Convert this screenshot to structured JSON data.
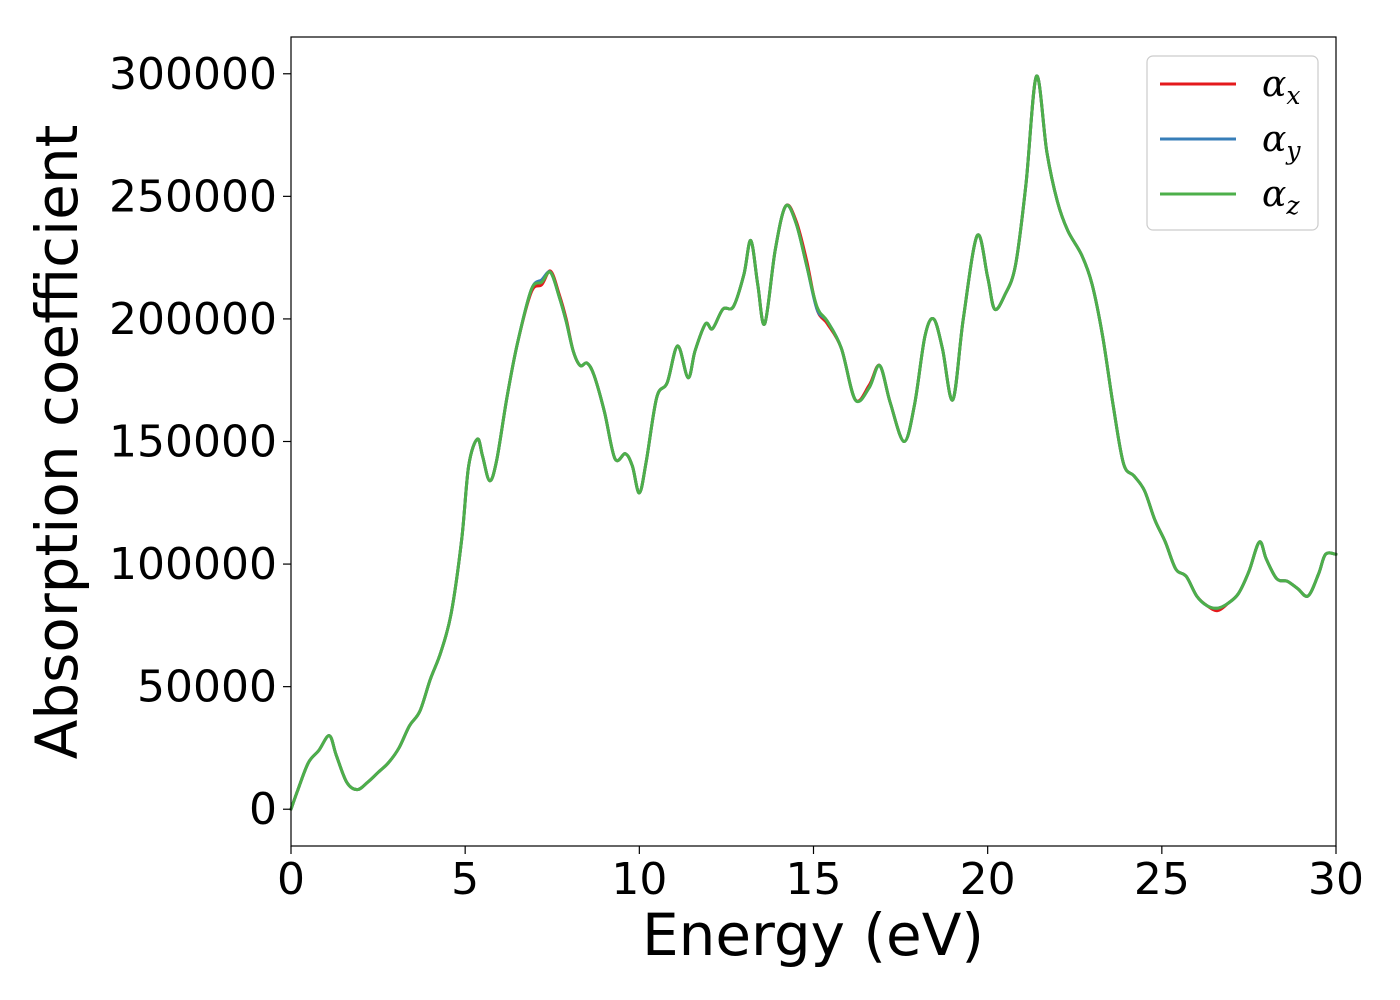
{
  "chart_data": {
    "type": "line",
    "title": "",
    "xlabel": "Energy (eV)",
    "ylabel": "Absorption coefficient",
    "xlim": [
      0,
      30
    ],
    "ylim": [
      -15000,
      315000
    ],
    "x_ticks": [
      "0",
      "5",
      "10",
      "15",
      "20",
      "25",
      "30"
    ],
    "y_ticks": [
      "0",
      "50000",
      "100000",
      "150000",
      "200000",
      "250000",
      "300000"
    ],
    "grid": false,
    "legend_position": "top-right",
    "series": [
      {
        "name": "α_x",
        "symbol": "α",
        "subscript": "x",
        "color": "#e41a1c",
        "x": [
          0,
          0.2,
          0.5,
          0.8,
          1.1,
          1.3,
          1.6,
          1.9,
          2.2,
          2.5,
          2.8,
          3.1,
          3.4,
          3.7,
          4.0,
          4.3,
          4.6,
          4.9,
          5.1,
          5.35,
          5.5,
          5.7,
          5.9,
          6.2,
          6.5,
          6.9,
          7.2,
          7.45,
          7.7,
          7.9,
          8.1,
          8.3,
          8.5,
          8.7,
          9.0,
          9.3,
          9.6,
          9.8,
          10.0,
          10.2,
          10.5,
          10.8,
          11.1,
          11.4,
          11.6,
          11.9,
          12.1,
          12.4,
          12.7,
          13.0,
          13.2,
          13.4,
          13.6,
          13.9,
          14.2,
          14.5,
          14.8,
          15.1,
          15.4,
          15.8,
          16.2,
          16.6,
          16.9,
          17.2,
          17.6,
          17.9,
          18.2,
          18.45,
          18.7,
          19.0,
          19.3,
          19.7,
          20.0,
          20.2,
          20.5,
          20.8,
          21.1,
          21.4,
          21.7,
          22.0,
          22.3,
          22.7,
          23.0,
          23.3,
          23.6,
          23.9,
          24.2,
          24.5,
          24.8,
          25.1,
          25.4,
          25.7,
          26.0,
          26.3,
          26.6,
          26.9,
          27.2,
          27.5,
          27.8,
          28.0,
          28.3,
          28.6,
          28.9,
          29.2,
          29.5,
          29.7,
          30.0
        ],
        "values": [
          0,
          8000,
          19000,
          24000,
          30000,
          22000,
          11000,
          8000,
          11000,
          15000,
          19000,
          25000,
          34000,
          40000,
          53000,
          64000,
          80000,
          110000,
          140000,
          151000,
          144000,
          134000,
          142000,
          168000,
          190000,
          211000,
          214000,
          219500,
          210000,
          200000,
          187000,
          181000,
          182000,
          177000,
          162000,
          143000,
          145000,
          140000,
          129000,
          142000,
          168000,
          174000,
          189000,
          176000,
          187000,
          198000,
          196000,
          204000,
          205000,
          218000,
          232000,
          214000,
          198000,
          228000,
          246000,
          240000,
          224000,
          204000,
          198000,
          188000,
          167000,
          173000,
          181000,
          166000,
          150000,
          165000,
          193000,
          200000,
          188000,
          167000,
          200000,
          234000,
          217000,
          204000,
          210000,
          222000,
          255000,
          299000,
          268000,
          248000,
          236000,
          226000,
          214000,
          193000,
          165000,
          141000,
          136000,
          130000,
          118000,
          109000,
          98000,
          95000,
          87000,
          83000,
          81000,
          84000,
          88000,
          97000,
          109000,
          102000,
          94000,
          93000,
          90000,
          87000,
          96000,
          104000,
          104000
        ]
      },
      {
        "name": "α_y",
        "symbol": "α",
        "subscript": "y",
        "color": "#377eb8",
        "x": [
          0,
          0.2,
          0.5,
          0.8,
          1.1,
          1.3,
          1.6,
          1.9,
          2.2,
          2.5,
          2.8,
          3.1,
          3.4,
          3.7,
          4.0,
          4.3,
          4.6,
          4.9,
          5.1,
          5.35,
          5.5,
          5.7,
          5.9,
          6.2,
          6.5,
          6.9,
          7.2,
          7.45,
          7.7,
          7.9,
          8.1,
          8.3,
          8.5,
          8.7,
          9.0,
          9.3,
          9.6,
          9.8,
          10.0,
          10.2,
          10.5,
          10.8,
          11.1,
          11.4,
          11.6,
          11.9,
          12.1,
          12.4,
          12.7,
          13.0,
          13.2,
          13.4,
          13.6,
          13.9,
          14.2,
          14.5,
          14.8,
          15.1,
          15.4,
          15.8,
          16.2,
          16.6,
          16.9,
          17.2,
          17.6,
          17.9,
          18.2,
          18.45,
          18.7,
          19.0,
          19.3,
          19.7,
          20.0,
          20.2,
          20.5,
          20.8,
          21.1,
          21.4,
          21.7,
          22.0,
          22.3,
          22.7,
          23.0,
          23.3,
          23.6,
          23.9,
          24.2,
          24.5,
          24.8,
          25.1,
          25.4,
          25.7,
          26.0,
          26.3,
          26.6,
          26.9,
          27.2,
          27.5,
          27.8,
          28.0,
          28.3,
          28.6,
          28.9,
          29.2,
          29.5,
          29.7,
          30.0
        ],
        "values": [
          0,
          8000,
          19000,
          24000,
          30000,
          22000,
          11000,
          8000,
          11000,
          15000,
          19000,
          25000,
          34000,
          40000,
          53000,
          64000,
          80000,
          110000,
          140000,
          151000,
          144000,
          134000,
          142000,
          168000,
          190000,
          212000,
          216000,
          219000,
          209000,
          199000,
          187000,
          181000,
          182000,
          177000,
          162000,
          143000,
          145000,
          140000,
          129000,
          142000,
          168000,
          174000,
          189000,
          176000,
          187000,
          198000,
          196000,
          204000,
          205000,
          218000,
          232000,
          214000,
          198000,
          228000,
          246000,
          239000,
          222000,
          204000,
          199000,
          188000,
          167000,
          172000,
          181000,
          166000,
          150000,
          165000,
          193000,
          200000,
          188000,
          167000,
          200000,
          234000,
          217000,
          204000,
          210000,
          222000,
          255000,
          299000,
          268000,
          248000,
          236000,
          226000,
          214000,
          193000,
          165000,
          141000,
          136000,
          130000,
          118000,
          109000,
          98000,
          95000,
          87000,
          83000,
          82000,
          84000,
          88000,
          97000,
          109000,
          102000,
          94000,
          93000,
          90000,
          87000,
          96000,
          104000,
          104000
        ]
      },
      {
        "name": "α_z",
        "symbol": "α",
        "subscript": "z",
        "color": "#4daf4a",
        "x": [
          0,
          0.2,
          0.5,
          0.8,
          1.1,
          1.3,
          1.6,
          1.9,
          2.2,
          2.5,
          2.8,
          3.1,
          3.4,
          3.7,
          4.0,
          4.3,
          4.6,
          4.9,
          5.1,
          5.35,
          5.5,
          5.7,
          5.9,
          6.2,
          6.5,
          6.9,
          7.2,
          7.45,
          7.7,
          7.9,
          8.1,
          8.3,
          8.5,
          8.7,
          9.0,
          9.3,
          9.6,
          9.8,
          10.0,
          10.2,
          10.5,
          10.8,
          11.1,
          11.4,
          11.6,
          11.9,
          12.1,
          12.4,
          12.7,
          13.0,
          13.2,
          13.4,
          13.6,
          13.9,
          14.2,
          14.5,
          14.8,
          15.1,
          15.4,
          15.8,
          16.2,
          16.6,
          16.9,
          17.2,
          17.6,
          17.9,
          18.2,
          18.45,
          18.7,
          19.0,
          19.3,
          19.7,
          20.0,
          20.2,
          20.5,
          20.8,
          21.1,
          21.4,
          21.7,
          22.0,
          22.3,
          22.7,
          23.0,
          23.3,
          23.6,
          23.9,
          24.2,
          24.5,
          24.8,
          25.1,
          25.4,
          25.7,
          26.0,
          26.3,
          26.6,
          26.9,
          27.2,
          27.5,
          27.8,
          28.0,
          28.3,
          28.6,
          28.9,
          29.2,
          29.5,
          29.7,
          30.0
        ],
        "values": [
          0,
          8000,
          19000,
          24000,
          30000,
          22000,
          11000,
          8000,
          11000,
          15000,
          19000,
          25000,
          34000,
          40000,
          53000,
          64000,
          80000,
          110000,
          140000,
          151000,
          144000,
          134000,
          142000,
          168000,
          190000,
          212000,
          215000,
          219000,
          209000,
          199000,
          187000,
          181000,
          182000,
          177000,
          162000,
          143000,
          145000,
          140000,
          129000,
          142000,
          168000,
          174000,
          189000,
          176000,
          187000,
          198000,
          196000,
          204000,
          205000,
          218000,
          232000,
          214000,
          198000,
          228000,
          246000,
          239000,
          222000,
          205000,
          199000,
          188000,
          167000,
          172000,
          181000,
          166000,
          150000,
          165000,
          193000,
          200000,
          188000,
          167000,
          200000,
          234000,
          217000,
          204000,
          210000,
          222000,
          255000,
          299000,
          268000,
          248000,
          236000,
          226000,
          214000,
          193000,
          165000,
          141000,
          136000,
          130000,
          118000,
          109000,
          98000,
          95000,
          87000,
          83000,
          82000,
          84000,
          88000,
          97000,
          109000,
          102000,
          94000,
          93000,
          90000,
          87000,
          96000,
          104000,
          104000
        ]
      }
    ]
  }
}
